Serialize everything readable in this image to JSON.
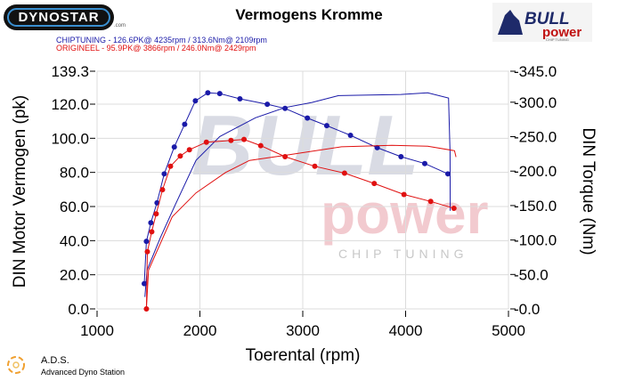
{
  "header": {
    "title": "Vermogens Kromme",
    "brand_logo": "DYNOSTAR",
    "brand_logo_suffix": ".com",
    "partner_logo": "BULL power CHIP TUNING"
  },
  "legend": [
    {
      "name": "CHIPTUNING",
      "text": "CHIPTUNING  - 126.6PK@ 4235rpm / 313.6Nm@ 2109rpm",
      "color": "#1a1aa8"
    },
    {
      "name": "ORIGINEEL",
      "text": "ORIGINEEL  - 95.9PK@ 3866rpm / 246.0Nm@ 2429rpm",
      "color": "#e01010"
    }
  ],
  "footer": {
    "ads_title": "A.D.S.",
    "ads_subtitle": "Advanced Dyno Station"
  },
  "watermark": {
    "word1": "BULL",
    "word2": "power",
    "word3": "CHIP TUNING"
  },
  "chart_data": {
    "type": "line",
    "title": "Vermogens Kromme",
    "xlabel": "Toerental (rpm)",
    "ylabel": "DIN Motor Vermogen (pk)",
    "y2label": "DIN Torque (Nm)",
    "xlim": [
      1000,
      5000
    ],
    "ylim": [
      0,
      139.3
    ],
    "y2lim": [
      0,
      345
    ],
    "xticks": [
      "1000",
      "2000",
      "3000",
      "4000",
      "5000"
    ],
    "xtick_values": [
      1000,
      2000,
      3000,
      4000,
      5000
    ],
    "yticks": [
      "0.0",
      "20.0",
      "40.0",
      "60.0",
      "80.0",
      "100.0",
      "120.0",
      "139.3"
    ],
    "ytick_values": [
      0,
      20,
      40,
      60,
      80,
      100,
      120,
      139.3
    ],
    "y2ticks": [
      "-0.0",
      "-50.0",
      "-100.0",
      "-150.0",
      "-200.0",
      "-250.0",
      "-300.0",
      "-345.0"
    ],
    "y2tick_values": [
      0,
      50,
      100,
      150,
      200,
      250,
      300,
      345
    ],
    "grid": true,
    "series": [
      {
        "name": "CHIPTUNING vermogen (pk)",
        "axis": "left",
        "style": "line",
        "color": "#1a1aa8",
        "x": [
          1465,
          1486,
          1616,
          1760,
          1962,
          2193,
          2540,
          2828,
          3088,
          3348,
          3955,
          4215,
          4417,
          4432,
          4434
        ],
        "y": [
          7,
          22.7,
          41.8,
          61,
          87,
          101,
          112,
          118,
          121,
          125,
          125.7,
          126.6,
          123.6,
          92,
          57.5
        ]
      },
      {
        "name": "CHIPTUNING koppel (Nm)",
        "axis": "right",
        "style": "dots",
        "color": "#1a1aa8",
        "x": [
          1459,
          1480,
          1523,
          1583,
          1653,
          1751,
          1852,
          1956,
          2077,
          2193,
          2389,
          2655,
          2828,
          3045,
          3233,
          3464,
          3724,
          3955,
          4186,
          4411
        ],
        "y": [
          36.7,
          98,
          125,
          154,
          196,
          235,
          268,
          302,
          313.6,
          312.6,
          305,
          297,
          291,
          277,
          266,
          252,
          234,
          221,
          211,
          196
        ]
      },
      {
        "name": "ORIGINEEL vermogen (pk)",
        "axis": "left",
        "style": "line",
        "color": "#e01010",
        "x": [
          1480,
          1500,
          1731,
          1962,
          2250,
          2482,
          2828,
          3377,
          3866,
          4215,
          4475,
          4490
        ],
        "y": [
          0,
          22.7,
          54,
          68,
          80,
          87,
          90,
          95,
          95.9,
          95.3,
          92.7,
          89
        ]
      },
      {
        "name": "ORIGINEEL koppel (Nm)",
        "axis": "right",
        "style": "dots",
        "color": "#e01010",
        "x": [
          1480,
          1489,
          1532,
          1575,
          1636,
          1714,
          1809,
          1898,
          2063,
          2302,
          2429,
          2591,
          2828,
          3117,
          3406,
          3695,
          3984,
          4244,
          4470
        ],
        "y": [
          0,
          83,
          112,
          138,
          173,
          207,
          222,
          231,
          242,
          244.5,
          246,
          237,
          221,
          207,
          197,
          182,
          166,
          156,
          146
        ]
      }
    ]
  }
}
